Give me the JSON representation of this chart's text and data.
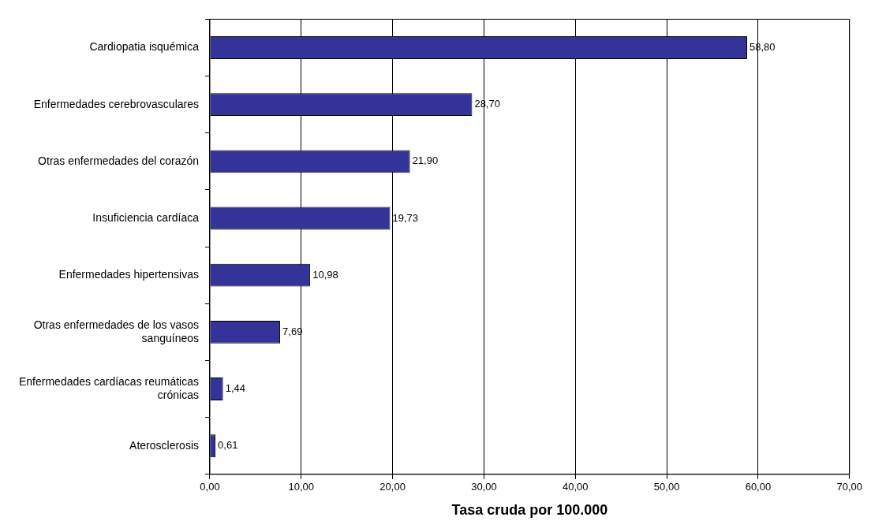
{
  "chart_data": {
    "type": "bar",
    "orientation": "horizontal",
    "xlabel": "Tasa cruda por 100.000",
    "categories": [
      "Cardiopatia isquémica",
      "Enfermedades cerebrovasculares",
      "Otras enfermedades del corazón",
      "Insuficiencia cardíaca",
      "Enfermedades hipertensivas",
      "Otras enfermedades de los vasos sanguíneos",
      "Enfermedades cardíacas reumáticas crónicas",
      "Aterosclerosis"
    ],
    "values": [
      58.8,
      28.7,
      21.9,
      19.73,
      10.98,
      7.69,
      1.44,
      0.61
    ],
    "value_labels": [
      "58,80",
      "28,70",
      "21,90",
      "19,73",
      "10,98",
      "7,69",
      "1,44",
      "0,61"
    ],
    "color": "#333399",
    "xlim": [
      0,
      70
    ],
    "xticks": [
      {
        "value": 0,
        "label": "0,00"
      },
      {
        "value": 10,
        "label": "10,00"
      },
      {
        "value": 20,
        "label": "20,00"
      },
      {
        "value": 30,
        "label": "30,00"
      },
      {
        "value": 40,
        "label": "40,00"
      },
      {
        "value": 50,
        "label": "50,00"
      },
      {
        "value": 60,
        "label": "60,00"
      },
      {
        "value": 70,
        "label": "70,00"
      }
    ],
    "grid": "x",
    "legend": false
  }
}
